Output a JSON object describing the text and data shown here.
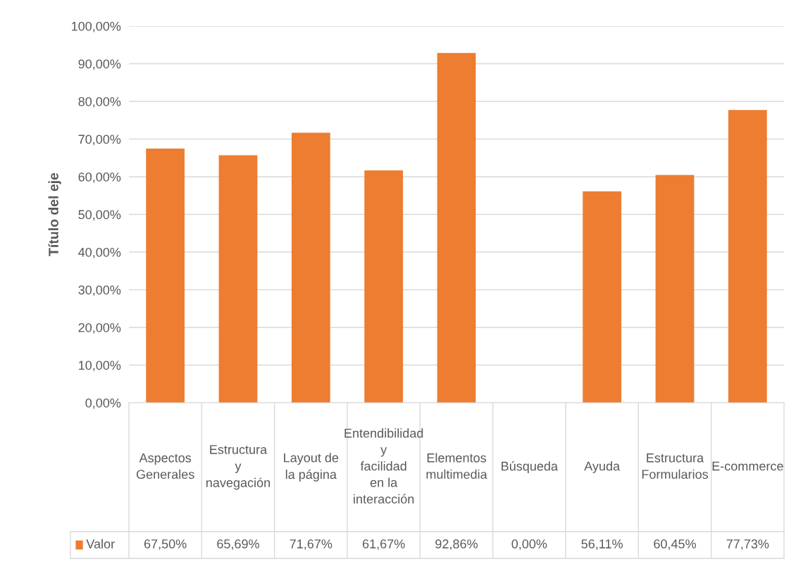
{
  "chart_data": {
    "type": "bar",
    "ylabel": "Título del eje",
    "categories": [
      "Aspectos Generales",
      "Estructura y navegación",
      "Layout de la página",
      "Entendibilidad y facilidad en la interacción",
      "Elementos multimedia",
      "Búsqueda",
      "Ayuda",
      "Estructura Formularios",
      "E-commerce"
    ],
    "series": [
      {
        "name": "Valor",
        "color": "#ed7d31",
        "values": [
          67.5,
          65.69,
          71.67,
          61.67,
          92.86,
          0,
          56.11,
          60.45,
          77.73
        ],
        "value_labels": [
          "67,50%",
          "65,69%",
          "71,67%",
          "61,67%",
          "92,86%",
          "0,00%",
          "56,11%",
          "60,45%",
          "77,73%"
        ]
      }
    ],
    "ylim": [
      0,
      100
    ],
    "yticks": [
      {
        "value": 0,
        "label": "0,00%"
      },
      {
        "value": 10,
        "label": "10,00%"
      },
      {
        "value": 20,
        "label": "20,00%"
      },
      {
        "value": 30,
        "label": "30,00%"
      },
      {
        "value": 40,
        "label": "40,00%"
      },
      {
        "value": 50,
        "label": "50,00%"
      },
      {
        "value": 60,
        "label": "60,00%"
      },
      {
        "value": 70,
        "label": "70,00%"
      },
      {
        "value": 80,
        "label": "80,00%"
      },
      {
        "value": 90,
        "label": "90,00%"
      },
      {
        "value": 100,
        "label": "100,00%"
      }
    ],
    "grid": "y",
    "legend": "bottom"
  }
}
